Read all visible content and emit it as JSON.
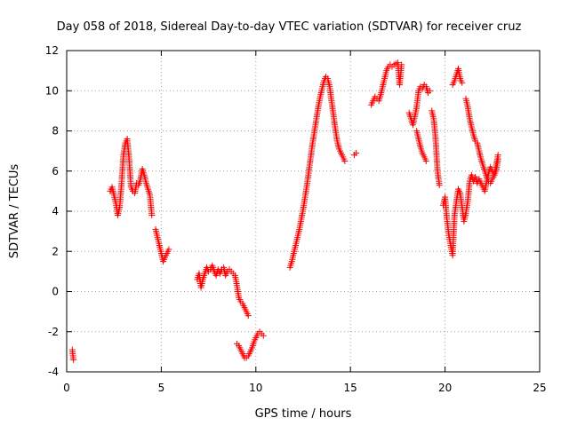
{
  "chart_data": {
    "type": "scatter",
    "title": "Day 058 of 2018, Sidereal Day-to-day VTEC variation (SDTVAR) for receiver cruz",
    "xlabel": "GPS time / hours",
    "ylabel": "SDTVAR / TECUs",
    "xlim": [
      0,
      25
    ],
    "ylim": [
      -4,
      12
    ],
    "xticks": [
      "0",
      "5",
      "10",
      "15",
      "20",
      "25"
    ],
    "yticks": [
      "-4",
      "-2",
      "0",
      "2",
      "4",
      "6",
      "8",
      "10",
      "12"
    ],
    "grid": true,
    "marker": "+",
    "color": "#ff0000",
    "segments": [
      [
        [
          0.3,
          -2.9
        ],
        [
          0.33,
          -3.2
        ],
        [
          0.36,
          -3.4
        ]
      ],
      [
        [
          2.3,
          5.0
        ],
        [
          2.4,
          5.2
        ],
        [
          2.5,
          4.8
        ],
        [
          2.6,
          4.4
        ],
        [
          2.7,
          3.8
        ],
        [
          2.8,
          4.2
        ],
        [
          2.9,
          5.4
        ],
        [
          3.0,
          6.8
        ],
        [
          3.1,
          7.4
        ],
        [
          3.2,
          7.6
        ],
        [
          3.3,
          6.6
        ],
        [
          3.4,
          5.2
        ],
        [
          3.5,
          5.0
        ],
        [
          3.6,
          4.9
        ],
        [
          3.7,
          5.4
        ],
        [
          3.8,
          5.3
        ],
        [
          3.9,
          5.6
        ],
        [
          4.0,
          6.1
        ],
        [
          4.1,
          5.8
        ],
        [
          4.2,
          5.4
        ],
        [
          4.3,
          5.1
        ],
        [
          4.4,
          4.8
        ],
        [
          4.5,
          3.8
        ]
      ],
      [
        [
          4.7,
          3.1
        ],
        [
          4.8,
          2.7
        ],
        [
          5.0,
          1.9
        ],
        [
          5.1,
          1.5
        ],
        [
          5.4,
          2.1
        ]
      ],
      [
        [
          6.9,
          0.6
        ],
        [
          7.0,
          0.9
        ],
        [
          7.1,
          0.2
        ],
        [
          7.2,
          0.6
        ],
        [
          7.4,
          1.2
        ],
        [
          7.5,
          1.0
        ],
        [
          7.6,
          1.1
        ],
        [
          7.7,
          1.3
        ],
        [
          7.8,
          1.0
        ],
        [
          7.9,
          0.8
        ],
        [
          8.0,
          1.1
        ],
        [
          8.1,
          0.9
        ],
        [
          8.2,
          1.1
        ],
        [
          8.3,
          1.2
        ],
        [
          8.4,
          0.8
        ],
        [
          8.5,
          1.0
        ],
        [
          8.6,
          1.1
        ],
        [
          8.7,
          1.0
        ],
        [
          8.8,
          0.9
        ],
        [
          8.9,
          0.8
        ],
        [
          9.0,
          0.3
        ],
        [
          9.1,
          -0.3
        ],
        [
          9.2,
          -0.5
        ],
        [
          9.3,
          -0.6
        ],
        [
          9.4,
          -0.8
        ],
        [
          9.5,
          -1.0
        ],
        [
          9.6,
          -1.2
        ]
      ],
      [
        [
          9.0,
          -2.6
        ],
        [
          9.1,
          -2.7
        ],
        [
          9.2,
          -2.9
        ],
        [
          9.3,
          -3.1
        ],
        [
          9.4,
          -3.3
        ],
        [
          9.5,
          -3.3
        ],
        [
          9.6,
          -3.2
        ],
        [
          9.7,
          -3.0
        ],
        [
          9.8,
          -2.8
        ],
        [
          9.9,
          -2.5
        ],
        [
          10.0,
          -2.3
        ],
        [
          10.1,
          -2.1
        ],
        [
          10.2,
          -2.0
        ],
        [
          10.3,
          -2.1
        ],
        [
          10.4,
          -2.2
        ]
      ],
      [
        [
          11.8,
          1.2
        ],
        [
          11.9,
          1.5
        ],
        [
          12.0,
          1.9
        ],
        [
          12.1,
          2.3
        ],
        [
          12.2,
          2.7
        ],
        [
          12.3,
          3.1
        ],
        [
          12.4,
          3.6
        ],
        [
          12.5,
          4.1
        ],
        [
          12.6,
          4.7
        ],
        [
          12.7,
          5.3
        ],
        [
          12.8,
          6.0
        ],
        [
          12.9,
          6.7
        ],
        [
          13.0,
          7.4
        ],
        [
          13.1,
          8.0
        ],
        [
          13.2,
          8.6
        ],
        [
          13.3,
          9.2
        ],
        [
          13.4,
          9.7
        ],
        [
          13.5,
          10.1
        ],
        [
          13.6,
          10.5
        ],
        [
          13.7,
          10.7
        ],
        [
          13.8,
          10.6
        ],
        [
          13.9,
          10.2
        ],
        [
          14.0,
          9.5
        ],
        [
          14.1,
          8.8
        ],
        [
          14.2,
          8.1
        ],
        [
          14.3,
          7.5
        ],
        [
          14.4,
          7.1
        ],
        [
          14.5,
          6.9
        ],
        [
          14.6,
          6.7
        ],
        [
          14.7,
          6.5
        ]
      ],
      [
        [
          15.2,
          6.8
        ],
        [
          15.3,
          6.9
        ]
      ],
      [
        [
          16.1,
          9.3
        ],
        [
          16.2,
          9.5
        ],
        [
          16.3,
          9.7
        ],
        [
          16.4,
          9.6
        ],
        [
          16.5,
          9.5
        ],
        [
          16.6,
          9.8
        ],
        [
          16.7,
          10.2
        ],
        [
          16.8,
          10.6
        ],
        [
          16.9,
          11.0
        ],
        [
          17.0,
          11.2
        ],
        [
          17.1,
          11.3
        ],
        [
          17.2,
          11.2
        ],
        [
          17.3,
          11.3
        ],
        [
          17.5,
          11.4
        ],
        [
          17.6,
          10.3
        ],
        [
          17.7,
          11.3
        ]
      ],
      [
        [
          18.1,
          8.9
        ],
        [
          18.2,
          8.6
        ],
        [
          18.3,
          8.3
        ],
        [
          18.4,
          8.7
        ],
        [
          18.5,
          9.2
        ],
        [
          18.6,
          10.0
        ],
        [
          18.7,
          10.2
        ],
        [
          18.8,
          10.1
        ],
        [
          18.9,
          10.3
        ],
        [
          19.0,
          10.2
        ],
        [
          19.1,
          9.9
        ],
        [
          19.2,
          10.0
        ]
      ],
      [
        [
          18.5,
          8.0
        ],
        [
          18.6,
          7.6
        ],
        [
          18.7,
          7.2
        ],
        [
          18.8,
          6.9
        ],
        [
          18.9,
          6.7
        ],
        [
          19.0,
          6.5
        ]
      ],
      [
        [
          19.3,
          9.0
        ],
        [
          19.4,
          8.6
        ],
        [
          19.5,
          7.6
        ],
        [
          19.6,
          6.0
        ],
        [
          19.7,
          5.3
        ]
      ],
      [
        [
          19.9,
          4.3
        ],
        [
          20.0,
          4.7
        ],
        [
          20.1,
          3.6
        ],
        [
          20.2,
          2.8
        ],
        [
          20.3,
          2.3
        ],
        [
          20.4,
          1.8
        ],
        [
          20.5,
          3.8
        ],
        [
          20.6,
          4.5
        ],
        [
          20.7,
          5.1
        ],
        [
          20.8,
          4.9
        ],
        [
          20.9,
          4.2
        ],
        [
          21.0,
          3.5
        ],
        [
          21.1,
          3.9
        ],
        [
          21.2,
          4.5
        ],
        [
          21.3,
          5.5
        ],
        [
          21.4,
          5.8
        ],
        [
          21.5,
          5.5
        ],
        [
          21.6,
          5.7
        ],
        [
          21.7,
          5.4
        ],
        [
          21.8,
          5.6
        ],
        [
          21.9,
          5.4
        ],
        [
          22.0,
          5.2
        ],
        [
          22.1,
          5.0
        ],
        [
          22.2,
          5.5
        ],
        [
          22.3,
          5.9
        ],
        [
          22.4,
          6.2
        ],
        [
          22.5,
          6.0
        ],
        [
          22.6,
          5.8
        ],
        [
          22.7,
          6.3
        ],
        [
          22.8,
          6.8
        ]
      ],
      [
        [
          20.4,
          10.3
        ],
        [
          20.5,
          10.5
        ],
        [
          20.6,
          10.8
        ],
        [
          20.7,
          11.1
        ],
        [
          20.8,
          10.6
        ],
        [
          20.9,
          10.4
        ]
      ],
      [
        [
          21.1,
          9.6
        ],
        [
          21.2,
          9.2
        ],
        [
          21.3,
          8.6
        ],
        [
          21.4,
          8.2
        ],
        [
          21.5,
          7.8
        ],
        [
          21.6,
          7.5
        ],
        [
          21.7,
          7.4
        ],
        [
          21.8,
          7.0
        ],
        [
          21.9,
          6.6
        ],
        [
          22.0,
          6.3
        ],
        [
          22.1,
          6.0
        ],
        [
          22.2,
          5.7
        ],
        [
          22.3,
          5.5
        ],
        [
          22.4,
          5.4
        ],
        [
          22.5,
          5.6
        ],
        [
          22.6,
          5.8
        ],
        [
          22.7,
          6.0
        ],
        [
          22.8,
          6.6
        ]
      ]
    ]
  }
}
